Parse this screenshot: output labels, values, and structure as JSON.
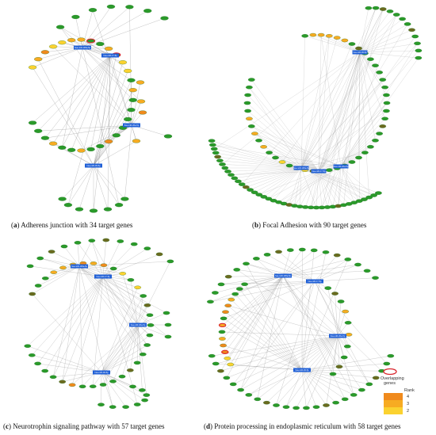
{
  "panels": [
    {
      "id": "a",
      "caption_letter": "a",
      "caption_text": "Adherens junction with 34 target genes",
      "mirna_labels": [
        "hsa-miR-106a-5p",
        "hsa-miR-17-5p",
        "hsa-miR-20a-5p",
        "hsa-miR-93-5p",
        "hsa-miR-20b-5p"
      ]
    },
    {
      "id": "b",
      "caption_letter": "b",
      "caption_text": "Focal Adhesion with 90 target genes",
      "mirna_labels": [
        "hsa-miR-106a-5p",
        "hsa-miR-17-5p",
        "hsa-miR-20a-5p",
        "hsa-miR-93-5p"
      ]
    },
    {
      "id": "c",
      "caption_letter": "c",
      "caption_text": "Neurotrophin signaling pathway with 57 target genes",
      "mirna_labels": [
        "hsa-miR-106a-5p",
        "hsa-miR-17-5p",
        "hsa-miR-20a-5p",
        "hsa-miR-93-5p"
      ]
    },
    {
      "id": "d",
      "caption_letter": "d",
      "caption_text": "Protein processing in endoplasmic reticulum with 58 target genes",
      "mirna_labels": [
        "hsa-miR-106a-5p",
        "hsa-miR-17-5p",
        "hsa-miR-20a-5p",
        "hsa-miR-93-5p"
      ]
    }
  ],
  "legend": {
    "overlap_label_line1": "Overlapping",
    "overlap_label_line2": "genes",
    "rank_title": "Rank",
    "ranks": [
      {
        "label": "4",
        "color": "#f08a1c"
      },
      {
        "label": "3",
        "color": "#f7ab22"
      },
      {
        "label": "2",
        "color": "#fbd230"
      }
    ],
    "overlap_color": "#d9272e"
  },
  "colors": {
    "gene_green": "#2a9a2a",
    "gene_green_dark": "#1f6f1f",
    "gene_olive": "#6b6a1f",
    "mirna_blue": "#1f5fd6",
    "edge": "#8a8a8a"
  }
}
